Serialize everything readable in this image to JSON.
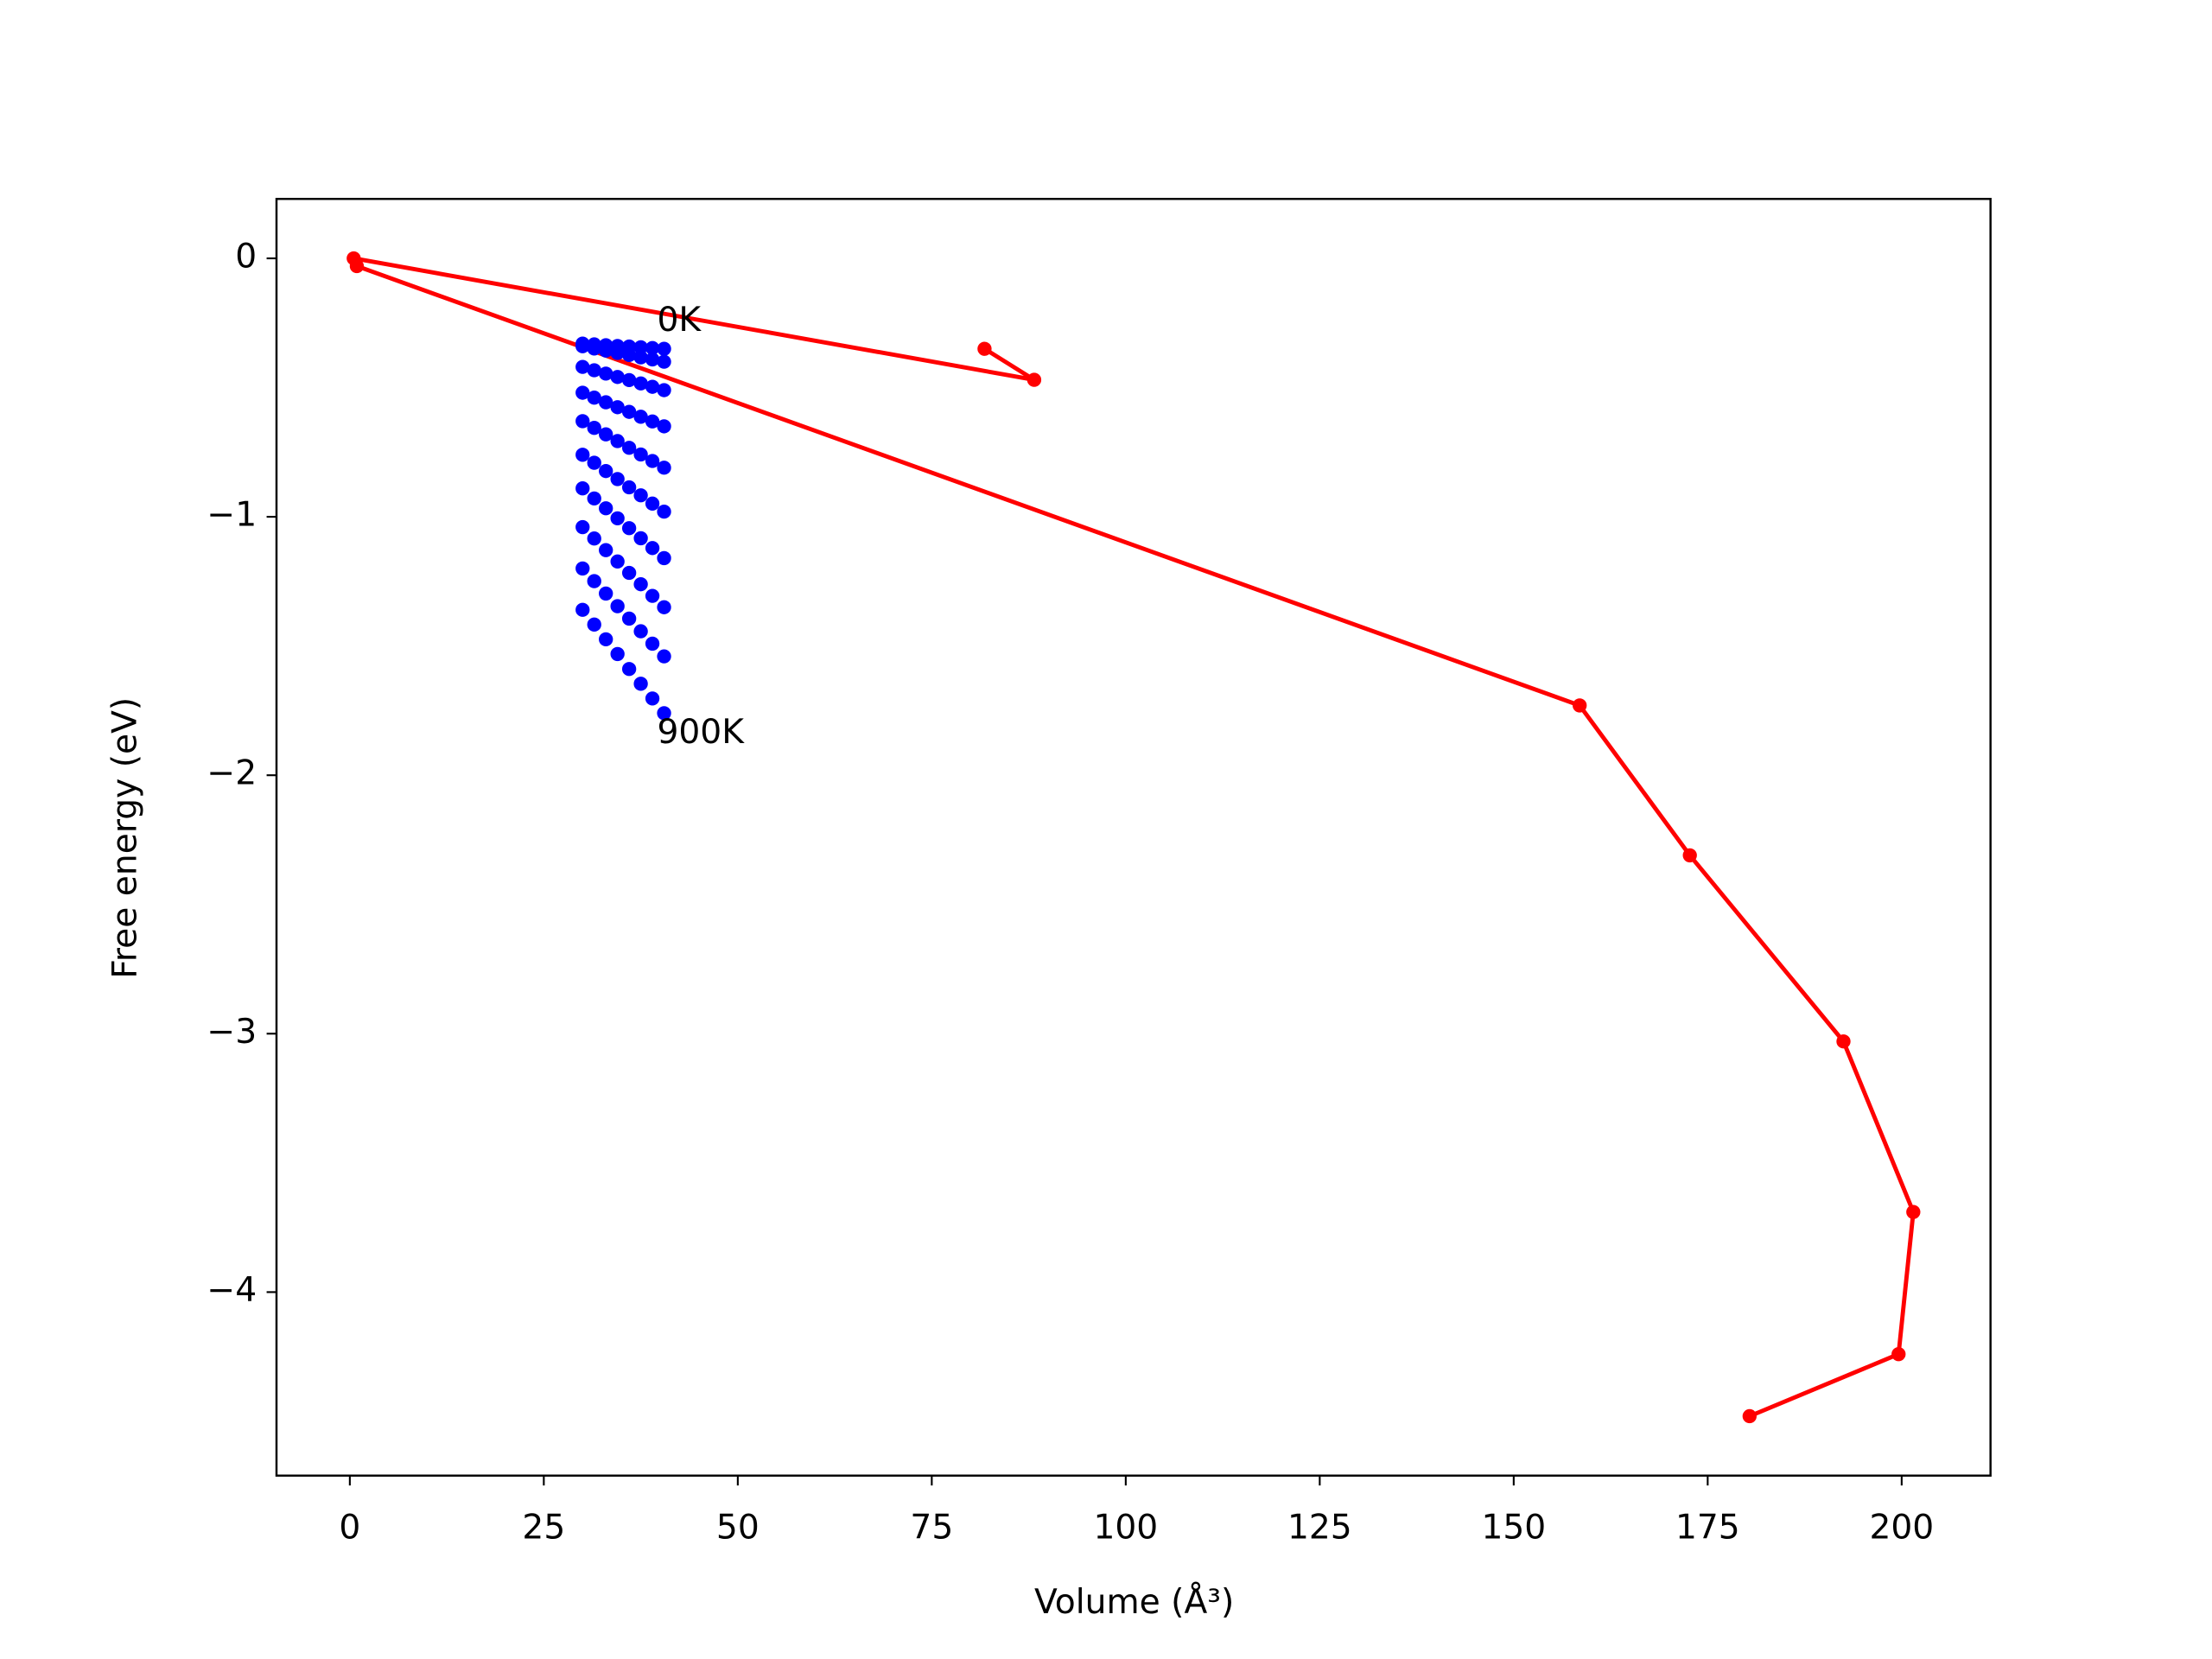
{
  "chart_data": {
    "type": "line",
    "xlabel": "Volume (Å³)",
    "ylabel": "Free energy (eV)",
    "xlim": [
      -9.45,
      211.45
    ],
    "ylim": [
      -4.71,
      0.23
    ],
    "xticks": [
      0,
      25,
      50,
      75,
      100,
      125,
      150,
      175,
      200
    ],
    "yticks": [
      {
        "value": 0,
        "label": "0"
      },
      {
        "value": -1,
        "label": "−1"
      },
      {
        "value": -2,
        "label": "−2"
      },
      {
        "value": -3,
        "label": "−3"
      },
      {
        "value": -4,
        "label": "−4"
      }
    ],
    "series": [
      {
        "color": "#ff0000",
        "linestyle": "solid",
        "x": [
          81.8,
          88.2,
          0.5,
          0.9,
          158.5,
          172.7,
          192.5,
          201.5,
          199.6,
          180.4
        ],
        "values": [
          -0.35,
          -0.47,
          0,
          -0.03,
          -1.73,
          -2.31,
          -3.03,
          -3.69,
          -4.24,
          -4.48
        ]
      },
      {
        "color": "#0000ff",
        "linestyle": "none",
        "x": [
          30,
          31.5,
          33,
          34.5,
          36,
          37.5,
          39,
          40.5
        ],
        "values": [
          -0.33,
          -0.333,
          -0.336,
          -0.339,
          -0.341,
          -0.344,
          -0.347,
          -0.35
        ]
      },
      {
        "color": "#0000ff",
        "linestyle": "none",
        "x": [
          30,
          31.5,
          33,
          34.5,
          36,
          37.5,
          39,
          40.5
        ],
        "values": [
          -0.34,
          -0.349,
          -0.357,
          -0.366,
          -0.374,
          -0.383,
          -0.391,
          -0.4
        ]
      },
      {
        "color": "#0000ff",
        "linestyle": "none",
        "x": [
          30,
          31.5,
          33,
          34.5,
          36,
          37.5,
          39,
          40.5
        ],
        "values": [
          -0.42,
          -0.433,
          -0.446,
          -0.459,
          -0.471,
          -0.484,
          -0.497,
          -0.51
        ]
      },
      {
        "color": "#0000ff",
        "linestyle": "none",
        "x": [
          30,
          31.5,
          33,
          34.5,
          36,
          37.5,
          39,
          40.5
        ],
        "values": [
          -0.52,
          -0.539,
          -0.557,
          -0.576,
          -0.594,
          -0.613,
          -0.631,
          -0.65
        ]
      },
      {
        "color": "#0000ff",
        "linestyle": "none",
        "x": [
          30,
          31.5,
          33,
          34.5,
          36,
          37.5,
          39,
          40.5
        ],
        "values": [
          -0.63,
          -0.656,
          -0.681,
          -0.707,
          -0.733,
          -0.759,
          -0.784,
          -0.81
        ]
      },
      {
        "color": "#0000ff",
        "linestyle": "none",
        "x": [
          30,
          31.5,
          33,
          34.5,
          36,
          37.5,
          39,
          40.5
        ],
        "values": [
          -0.76,
          -0.791,
          -0.823,
          -0.854,
          -0.886,
          -0.917,
          -0.949,
          -0.98
        ]
      },
      {
        "color": "#0000ff",
        "linestyle": "none",
        "x": [
          30,
          31.5,
          33,
          34.5,
          36,
          37.5,
          39,
          40.5
        ],
        "values": [
          -0.89,
          -0.929,
          -0.967,
          -1.006,
          -1.044,
          -1.083,
          -1.121,
          -1.16
        ]
      },
      {
        "color": "#0000ff",
        "linestyle": "none",
        "x": [
          30,
          31.5,
          33,
          34.5,
          36,
          37.5,
          39,
          40.5
        ],
        "values": [
          -1.04,
          -1.084,
          -1.129,
          -1.173,
          -1.217,
          -1.261,
          -1.306,
          -1.35
        ]
      },
      {
        "color": "#0000ff",
        "linestyle": "none",
        "x": [
          30,
          31.5,
          33,
          34.5,
          36,
          37.5,
          39,
          40.5
        ],
        "values": [
          -1.2,
          -1.249,
          -1.297,
          -1.346,
          -1.394,
          -1.443,
          -1.491,
          -1.54
        ]
      },
      {
        "color": "#0000ff",
        "linestyle": "none",
        "x": [
          30,
          31.5,
          33,
          34.5,
          36,
          37.5,
          39,
          40.5
        ],
        "values": [
          -1.36,
          -1.417,
          -1.474,
          -1.531,
          -1.589,
          -1.646,
          -1.703,
          -1.76
        ]
      }
    ],
    "annotations": [
      {
        "text": "0K",
        "x": 39.6,
        "y": -0.245
      },
      {
        "text": "900K",
        "x": 39.6,
        "y": -1.84
      }
    ]
  }
}
